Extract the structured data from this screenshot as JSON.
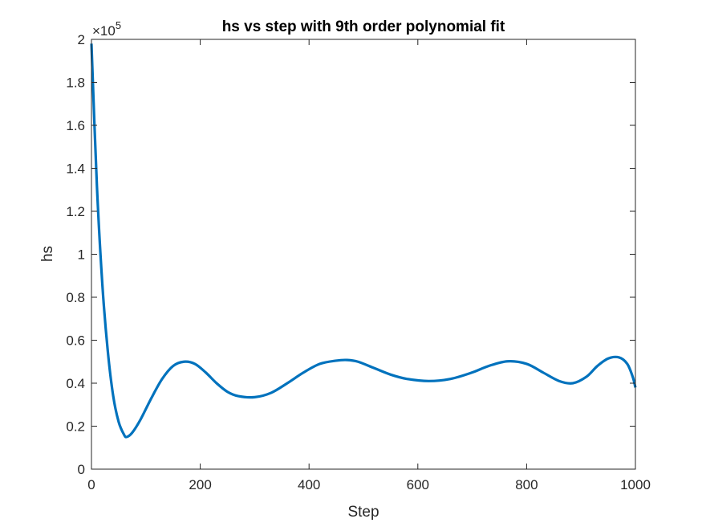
{
  "chart_data": {
    "type": "line",
    "title": "hs vs step with 9th order polynomial fit",
    "xlabel": "Step",
    "ylabel": "hs",
    "xlim": [
      0,
      1000
    ],
    "ylim": [
      0,
      2
    ],
    "x_ticks": [
      0,
      200,
      400,
      600,
      800,
      1000
    ],
    "y_ticks": [
      0,
      0.2,
      0.4,
      0.6,
      0.8,
      1,
      1.2,
      1.4,
      1.6,
      1.8,
      2
    ],
    "y_tick_labels": [
      "0",
      "0.2",
      "0.4",
      "0.6",
      "0.8",
      "1",
      "1.2",
      "1.4",
      "1.6",
      "1.8",
      "2"
    ],
    "x_tick_labels": [
      "0",
      "200",
      "400",
      "600",
      "800",
      "1000"
    ],
    "y_exponent": {
      "base": "×10",
      "power": "5"
    },
    "grid": false,
    "box": true,
    "series": [
      {
        "color": "#0072BD",
        "x": [
          0,
          10,
          20,
          30,
          40,
          50,
          60,
          65,
          75,
          90,
          110,
          130,
          150,
          170,
          190,
          210,
          230,
          250,
          270,
          300,
          330,
          360,
          390,
          420,
          450,
          470,
          490,
          520,
          550,
          580,
          620,
          660,
          700,
          730,
          765,
          800,
          830,
          860,
          885,
          910,
          930,
          950,
          970,
          985,
          995,
          1000
        ],
        "y": [
          1.98,
          1.32,
          0.86,
          0.55,
          0.34,
          0.22,
          0.16,
          0.15,
          0.17,
          0.23,
          0.33,
          0.42,
          0.48,
          0.5,
          0.49,
          0.45,
          0.4,
          0.36,
          0.34,
          0.335,
          0.355,
          0.4,
          0.45,
          0.49,
          0.505,
          0.508,
          0.5,
          0.47,
          0.44,
          0.42,
          0.41,
          0.42,
          0.45,
          0.48,
          0.502,
          0.49,
          0.45,
          0.41,
          0.4,
          0.43,
          0.48,
          0.515,
          0.52,
          0.49,
          0.43,
          0.38
        ]
      }
    ]
  }
}
